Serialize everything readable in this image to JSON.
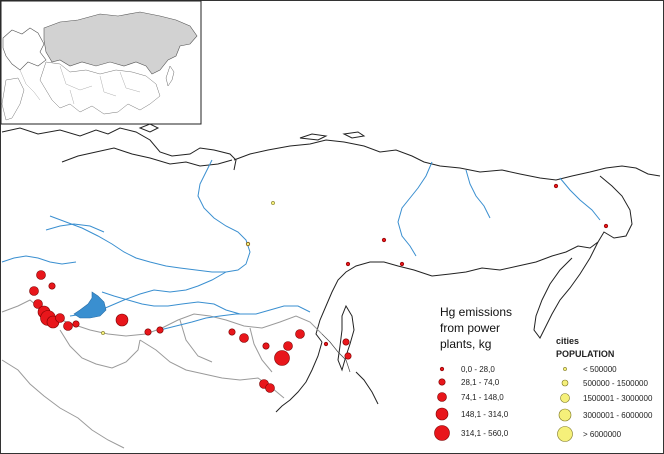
{
  "emissions_legend": {
    "title_lines": [
      "Hg emissions",
      "from power",
      "plants, kg"
    ],
    "classes": [
      {
        "label": "0,0 - 28,0"
      },
      {
        "label": "28,1 - 74,0"
      },
      {
        "label": "74,1 - 148,0"
      },
      {
        "label": "148,1 - 314,0"
      },
      {
        "label": "314,1 - 560,0"
      }
    ]
  },
  "population_legend": {
    "title_line1": "cities",
    "title_line2": "POPULATION",
    "classes": [
      {
        "label": "< 500000"
      },
      {
        "label": "500000 - 1500000"
      },
      {
        "label": "1500001 - 3000000"
      },
      {
        "label": "3000001 - 6000000"
      },
      {
        "label": "> 6000000"
      }
    ]
  },
  "colors": {
    "emission_fill": "#e8161b",
    "emission_stroke": "#7a0000",
    "city_fill": "#f5f07a",
    "city_stroke": "#7a7420",
    "river": "#3a8fd0",
    "coast": "#222222",
    "border": "#9a9a9a",
    "inset_land": "#d2d2d2"
  }
}
